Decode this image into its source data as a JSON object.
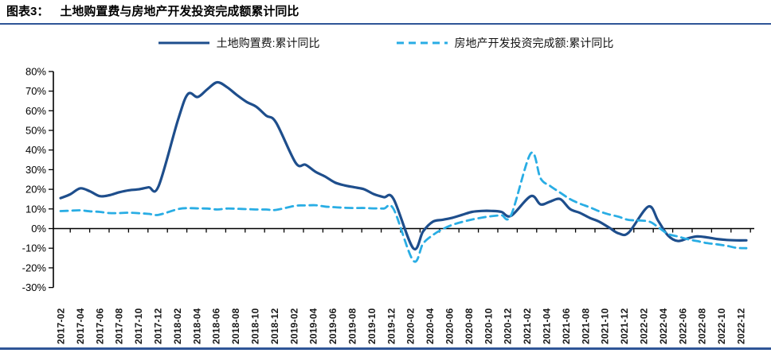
{
  "title": {
    "prefix": "图表3：",
    "text": "土地购置费与房地产开发投资完成额累计同比"
  },
  "colors": {
    "accent_rule": "#2f5597",
    "axis": "#000000",
    "x_tick_label": "#1a1a1a",
    "y_tick_label": "#000000"
  },
  "legend": {
    "items": [
      {
        "label": "土地购置费:累计同比",
        "swatch": "solid-line"
      },
      {
        "label": "房地产开发投资完成额:累计同比",
        "swatch": "dashed-line"
      }
    ]
  },
  "chart_data": {
    "type": "line",
    "title": "土地购置费与房地产开发投资完成额累计同比",
    "xlabel": "",
    "ylabel": "",
    "ylim": [
      -30,
      80
    ],
    "y_tick_values": [
      80,
      70,
      60,
      50,
      40,
      30,
      20,
      10,
      0,
      -10,
      -20,
      -30
    ],
    "y_tick_labels": [
      "80%",
      "70%",
      "60%",
      "50%",
      "40%",
      "30%",
      "20%",
      "10%",
      "0%",
      "-10%",
      "-20%",
      "-30%"
    ],
    "grid": false,
    "legend_position": "top",
    "x_labels_rotated_90": true,
    "x_tick_labels": [
      "2017-02",
      "2017-04",
      "2017-06",
      "2017-08",
      "2017-10",
      "2017-12",
      "2018-02",
      "2018-04",
      "2018-06",
      "2018-08",
      "2018-10",
      "2018-12",
      "2019-02",
      "2019-04",
      "2019-06",
      "2019-08",
      "2019-10",
      "2019-12",
      "2020-02",
      "2020-04",
      "2020-06",
      "2020-08",
      "2020-10",
      "2020-12",
      "2021-02",
      "2021-04",
      "2021-06",
      "2021-08",
      "2021-10",
      "2021-12",
      "2022-02",
      "2022-04",
      "2022-06",
      "2022-08",
      "2022-10",
      "2022-12"
    ],
    "x": [
      "2017-02",
      "2017-03",
      "2017-04",
      "2017-05",
      "2017-06",
      "2017-07",
      "2017-08",
      "2017-09",
      "2017-10",
      "2017-11",
      "2017-12",
      "2018-02",
      "2018-03",
      "2018-04",
      "2018-05",
      "2018-06",
      "2018-07",
      "2018-08",
      "2018-09",
      "2018-10",
      "2018-11",
      "2018-12",
      "2019-02",
      "2019-03",
      "2019-04",
      "2019-05",
      "2019-06",
      "2019-07",
      "2019-08",
      "2019-09",
      "2019-10",
      "2019-11",
      "2019-12",
      "2020-02",
      "2020-03",
      "2020-04",
      "2020-05",
      "2020-06",
      "2020-07",
      "2020-08",
      "2020-09",
      "2020-10",
      "2020-11",
      "2020-12",
      "2021-02",
      "2021-03",
      "2021-04",
      "2021-05",
      "2021-06",
      "2021-07",
      "2021-08",
      "2021-09",
      "2021-10",
      "2021-11",
      "2021-12",
      "2022-02",
      "2022-03",
      "2022-04",
      "2022-05",
      "2022-06",
      "2022-07",
      "2022-08",
      "2022-09",
      "2022-10",
      "2022-11",
      "2022-12"
    ],
    "series": [
      {
        "name": "土地购置费:累计同比",
        "color": "#1e4e8c",
        "style": "solid",
        "width": 3.2,
        "dash": null,
        "values": [
          15.5,
          17.5,
          20.5,
          19.0,
          16.5,
          17.0,
          18.5,
          19.5,
          20.0,
          21.0,
          21.5,
          55.5,
          68.5,
          67.0,
          71.0,
          74.5,
          72.0,
          68.0,
          64.5,
          62.0,
          57.5,
          54.0,
          33.5,
          32.5,
          29.0,
          26.5,
          23.5,
          22.0,
          21.0,
          20.0,
          17.5,
          16.0,
          15.0,
          -10.0,
          -1.5,
          3.5,
          4.5,
          5.5,
          7.0,
          8.5,
          9.0,
          9.0,
          8.5,
          6.5,
          16.5,
          12.3,
          13.8,
          15.0,
          10.0,
          8.0,
          5.5,
          3.5,
          0.5,
          -2.5,
          -2.0,
          11.2,
          4.0,
          -3.5,
          -6.3,
          -5.0,
          -4.0,
          -4.5,
          -5.3,
          -5.8,
          -6.0,
          -6.0
        ]
      },
      {
        "name": "房地产开发投资完成额:累计同比",
        "color": "#29ade4",
        "style": "dashed",
        "width": 2.8,
        "dash": "9 6",
        "values": [
          8.9,
          9.1,
          9.3,
          8.8,
          8.5,
          7.9,
          7.9,
          8.1,
          7.8,
          7.5,
          7.0,
          9.9,
          10.4,
          10.3,
          10.2,
          9.7,
          10.2,
          10.1,
          9.9,
          9.7,
          9.7,
          9.5,
          11.6,
          11.8,
          11.9,
          11.2,
          10.9,
          10.6,
          10.5,
          10.5,
          10.3,
          10.2,
          9.9,
          -16.3,
          -7.7,
          -3.3,
          -0.3,
          1.9,
          3.4,
          4.6,
          5.6,
          6.3,
          6.8,
          7.0,
          38.3,
          25.6,
          21.6,
          18.3,
          15.0,
          12.7,
          10.9,
          8.8,
          7.2,
          6.0,
          4.4,
          3.7,
          0.7,
          -2.7,
          -4.0,
          -5.4,
          -6.4,
          -7.4,
          -8.0,
          -8.8,
          -9.8,
          -10.0
        ]
      }
    ]
  }
}
